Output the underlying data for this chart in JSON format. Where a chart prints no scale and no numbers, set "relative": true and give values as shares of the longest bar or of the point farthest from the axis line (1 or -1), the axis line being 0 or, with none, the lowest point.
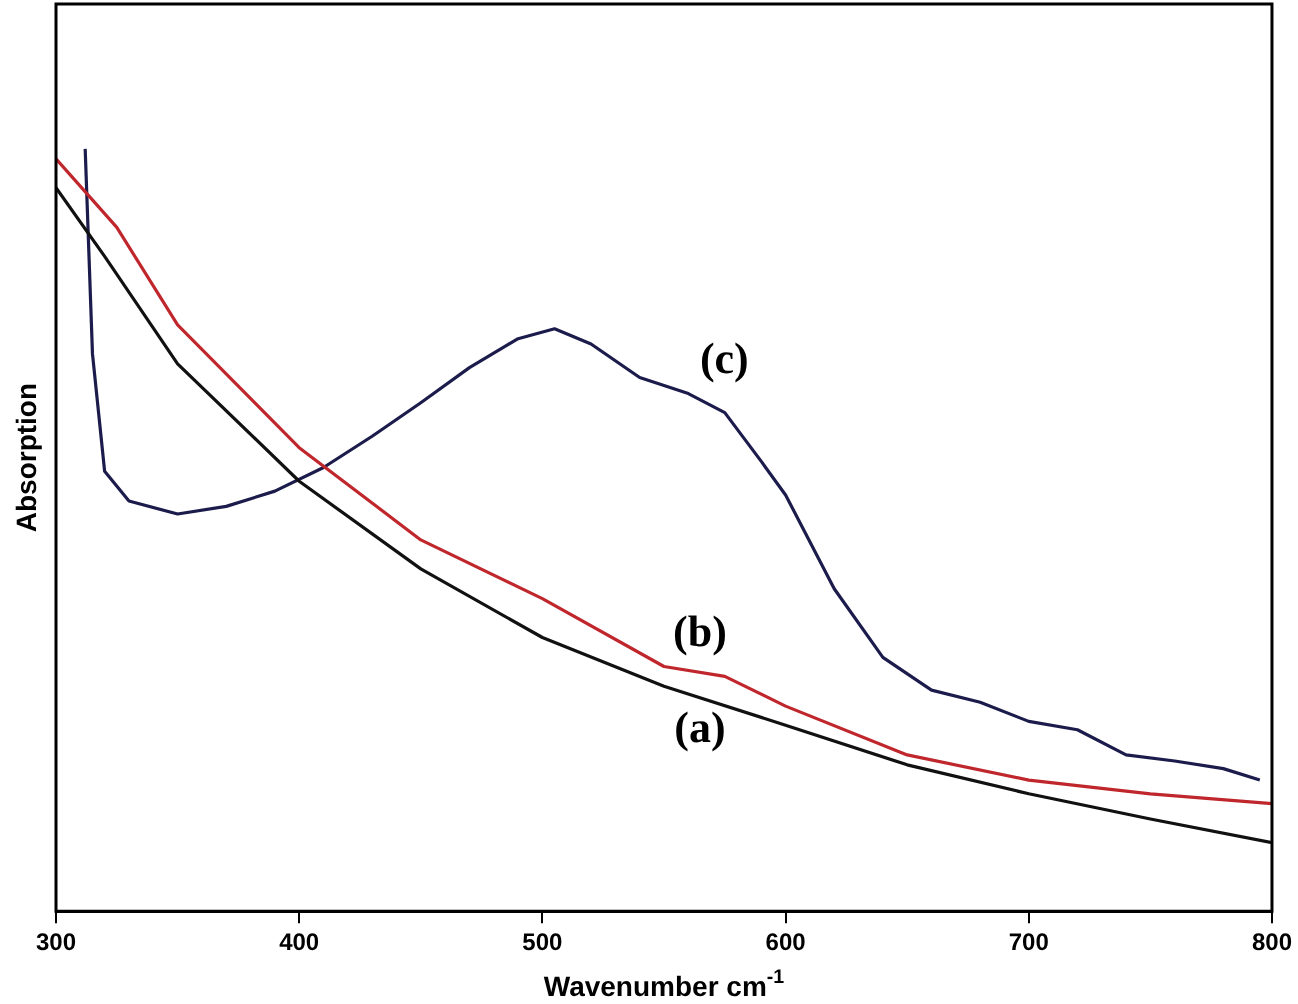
{
  "chart_data": {
    "type": "line",
    "relative": true,
    "xlabel": "Wavenumber cm$^{-1}$",
    "ylabel": "Absorption",
    "xlim": [
      300,
      800
    ],
    "xticks": [
      300,
      400,
      500,
      600,
      700,
      800
    ],
    "grid": false,
    "legend": false,
    "marker": "none",
    "line_style": "solid",
    "series": [
      {
        "name": "(a)",
        "color": "#111111",
        "x": [
          300,
          320,
          350,
          400,
          450,
          500,
          550,
          600,
          650,
          700,
          750,
          800
        ],
        "values": [
          0.949,
          0.859,
          0.718,
          0.564,
          0.449,
          0.359,
          0.295,
          0.244,
          0.192,
          0.154,
          0.121,
          0.09
        ]
      },
      {
        "name": "(b)",
        "color": "#c0272d",
        "x": [
          300,
          325,
          350,
          400,
          450,
          500,
          550,
          575,
          600,
          650,
          700,
          750,
          800
        ],
        "values": [
          0.987,
          0.897,
          0.769,
          0.608,
          0.487,
          0.41,
          0.321,
          0.308,
          0.269,
          0.205,
          0.172,
          0.154,
          0.141
        ]
      },
      {
        "name": "(c)",
        "color": "#1c1c4c",
        "x": [
          312,
          315,
          320,
          330,
          350,
          370,
          390,
          410,
          430,
          450,
          470,
          490,
          505,
          520,
          540,
          560,
          575,
          590,
          600,
          620,
          640,
          660,
          680,
          700,
          720,
          740,
          760,
          780,
          795
        ],
        "values": [
          1,
          0.731,
          0.577,
          0.538,
          0.521,
          0.531,
          0.551,
          0.582,
          0.623,
          0.667,
          0.713,
          0.751,
          0.764,
          0.744,
          0.7,
          0.679,
          0.654,
          0.59,
          0.546,
          0.423,
          0.333,
          0.29,
          0.274,
          0.249,
          0.238,
          0.205,
          0.197,
          0.187,
          0.172
        ]
      }
    ]
  }
}
